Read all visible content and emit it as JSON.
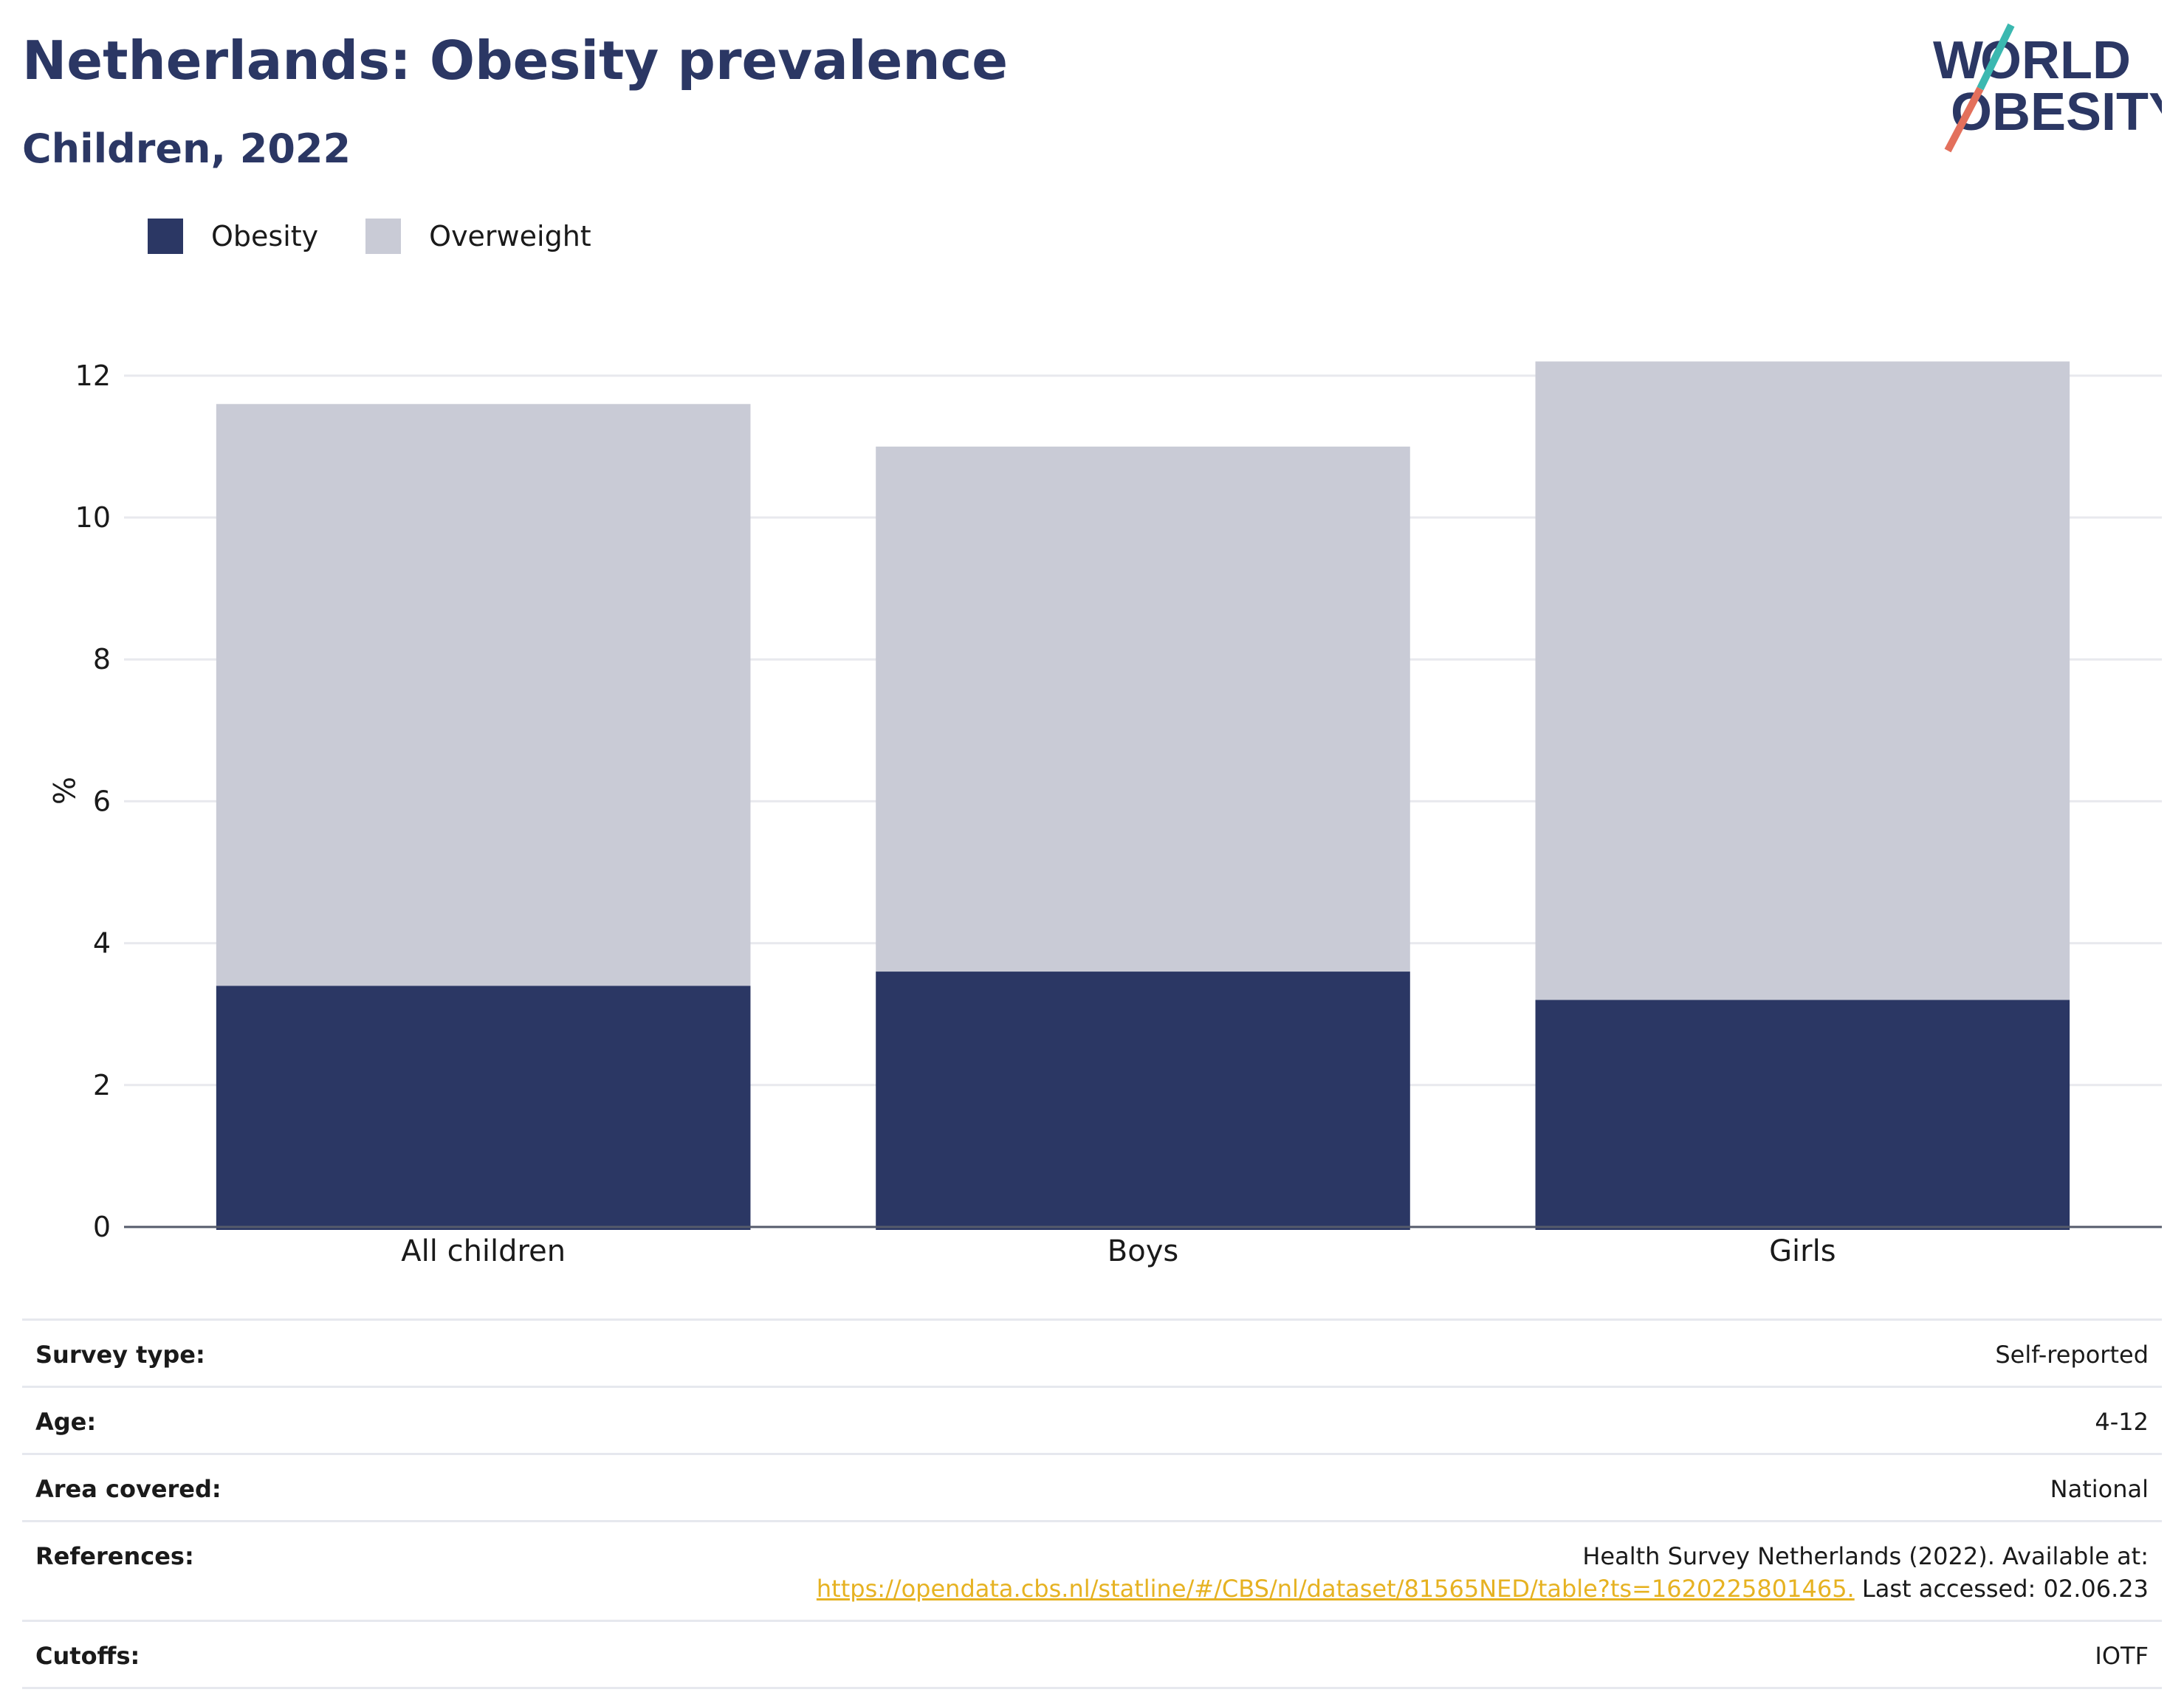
{
  "header": {
    "title": "Netherlands: Obesity prevalence",
    "subtitle": "Children, 2022",
    "logo_text": "WORLD OBESITY"
  },
  "legend": [
    {
      "label": "Obesity",
      "color": "#2b3764"
    },
    {
      "label": "Overweight",
      "color": "#c9cbd6"
    }
  ],
  "chart_data": {
    "type": "bar",
    "stacked": true,
    "categories": [
      "All children",
      "Boys",
      "Girls"
    ],
    "series": [
      {
        "name": "Obesity",
        "values": [
          3.4,
          3.6,
          3.2
        ],
        "color": "#2b3764"
      },
      {
        "name": "Overweight",
        "values": [
          8.2,
          7.4,
          9.0
        ],
        "color": "#c9cbd6"
      }
    ],
    "ylabel": "%",
    "ylim": [
      0,
      12.3
    ],
    "yticks": [
      0,
      2,
      4,
      6,
      8,
      10,
      12
    ],
    "grid": true
  },
  "meta": {
    "survey_type_label": "Survey type:",
    "survey_type_value": "Self-reported",
    "age_label": "Age:",
    "age_value": "4-12",
    "area_label": "Area covered:",
    "area_value": "National",
    "references_label": "References:",
    "references_line1": "Health Survey Netherlands (2022). Available at:",
    "references_link": "https://opendata.cbs.nl/statline/#/CBS/nl/dataset/81565NED/table?ts=1620225801465.",
    "references_accessed": " Last accessed: 02.06.23",
    "cutoffs_label": "Cutoffs:",
    "cutoffs_value": "IOTF"
  },
  "colors": {
    "brand_navy": "#2b3764",
    "brand_teal": "#3bb8b0",
    "brand_coral": "#e3705c",
    "link": "#e6b222"
  }
}
